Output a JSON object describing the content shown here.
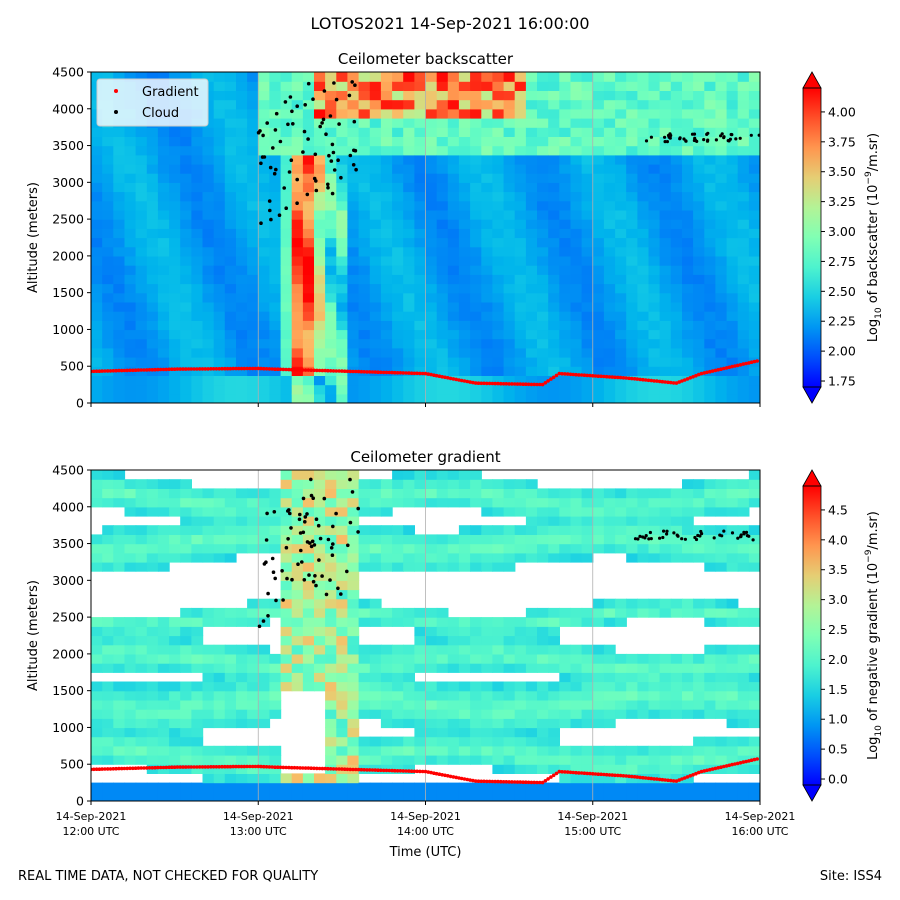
{
  "figure": {
    "suptitle": "LOTOS2021 14-Sep-2021 16:00:00",
    "footer_left": "REAL TIME DATA, NOT CHECKED FOR QUALITY",
    "footer_right": "Site: ISS4"
  },
  "chart_data": [
    {
      "type": "heatmap",
      "title": "Ceilometer backscatter",
      "xlabel": "",
      "ylabel": "Altitude (meters)",
      "ylim": [
        0,
        4500
      ],
      "yticks": [
        "0",
        "500",
        "1000",
        "1500",
        "2000",
        "2500",
        "3000",
        "3500",
        "4000",
        "4500"
      ],
      "xticks": [
        {
          "line1": "14-Sep-2021",
          "line2": "12:00 UTC"
        },
        {
          "line1": "14-Sep-2021",
          "line2": "13:00 UTC"
        },
        {
          "line1": "14-Sep-2021",
          "line2": "14:00 UTC"
        },
        {
          "line1": "14-Sep-2021",
          "line2": "15:00 UTC"
        },
        {
          "line1": "14-Sep-2021",
          "line2": "16:00 UTC"
        }
      ],
      "show_xtick_labels": false,
      "xlim": [
        "14-Sep-2021 12:00 UTC",
        "14-Sep-2021 16:00 UTC"
      ],
      "grid": "vertical lines at hourly ticks",
      "legend": {
        "placement": "top-left",
        "entries": [
          {
            "label": "Gradient",
            "color": "#ff0000"
          },
          {
            "label": "Cloud",
            "color": "#000000"
          }
        ]
      },
      "colorbar": {
        "label": "Log10 of backscatter (10^-9/m.sr)",
        "label_base": "Log",
        "label_sub": "10",
        "label_mid": " of backscatter (10",
        "label_sup": "−9",
        "label_end": "/m.sr)",
        "min": 1.7,
        "max": 4.2,
        "ticks": [
          "1.75",
          "2.00",
          "2.25",
          "2.50",
          "2.75",
          "3.00",
          "3.25",
          "3.50",
          "3.75",
          "4.00"
        ],
        "extend": "both",
        "colormap": "rainbow"
      },
      "background_level": 2.25,
      "boundary_layer_gradient": [
        {
          "time_h": 12.0,
          "alt_m": 430
        },
        {
          "time_h": 12.5,
          "alt_m": 460
        },
        {
          "time_h": 13.0,
          "alt_m": 470
        },
        {
          "time_h": 13.1,
          "alt_m": 460
        },
        {
          "time_h": 14.0,
          "alt_m": 400
        },
        {
          "time_h": 14.3,
          "alt_m": 270
        },
        {
          "time_h": 14.7,
          "alt_m": 250
        },
        {
          "time_h": 14.8,
          "alt_m": 400
        },
        {
          "time_h": 15.2,
          "alt_m": 340
        },
        {
          "time_h": 15.5,
          "alt_m": 270
        },
        {
          "time_h": 15.65,
          "alt_m": 400
        },
        {
          "time_h": 16.0,
          "alt_m": 580
        }
      ]
    },
    {
      "type": "heatmap",
      "title": "Ceilometer gradient",
      "xlabel": "Time (UTC)",
      "ylabel": "Altitude (meters)",
      "ylim": [
        0,
        4500
      ],
      "yticks": [
        "0",
        "500",
        "1000",
        "1500",
        "2000",
        "2500",
        "3000",
        "3500",
        "4000",
        "4500"
      ],
      "xticks": [
        {
          "line1": "14-Sep-2021",
          "line2": "12:00 UTC"
        },
        {
          "line1": "14-Sep-2021",
          "line2": "13:00 UTC"
        },
        {
          "line1": "14-Sep-2021",
          "line2": "14:00 UTC"
        },
        {
          "line1": "14-Sep-2021",
          "line2": "15:00 UTC"
        },
        {
          "line1": "14-Sep-2021",
          "line2": "16:00 UTC"
        }
      ],
      "show_xtick_labels": true,
      "xlim": [
        "14-Sep-2021 12:00 UTC",
        "14-Sep-2021 16:00 UTC"
      ],
      "grid": "vertical lines at hourly ticks",
      "colorbar": {
        "label": "Log10 of negative gradient (10^-9/m.sr)",
        "label_base": "Log",
        "label_sub": "10",
        "label_mid": " of negative gradient (10",
        "label_sup": "−9",
        "label_end": "/m.sr)",
        "min": -0.1,
        "max": 4.9,
        "ticks": [
          "0.0",
          "0.5",
          "1.0",
          "1.5",
          "2.0",
          "2.5",
          "3.0",
          "3.5",
          "4.0",
          "4.5"
        ],
        "extend": "both",
        "colormap": "rainbow"
      }
    }
  ]
}
